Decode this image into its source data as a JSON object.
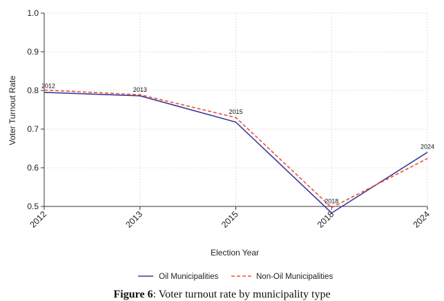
{
  "chart_data": {
    "type": "line",
    "categories": [
      "2012",
      "2013",
      "2015",
      "2018",
      "2024"
    ],
    "series": [
      {
        "name": "Oil Municipalities",
        "values": [
          0.795,
          0.786,
          0.718,
          0.483,
          0.64
        ],
        "color": "#3a3a9c",
        "style": "solid"
      },
      {
        "name": "Non-Oil Municipalities",
        "values": [
          0.801,
          0.789,
          0.73,
          0.497,
          0.624
        ],
        "color": "#ee4d33",
        "style": "dashed"
      }
    ],
    "point_labels": [
      "2012",
      "2013",
      "2015",
      "2018",
      "2024"
    ],
    "xlabel": "Election Year",
    "ylabel": "Voter Turnout Rate",
    "ylim": [
      0.5,
      1.0
    ],
    "yticks": [
      "0.5",
      "0.6",
      "0.7",
      "0.8",
      "0.9",
      "1.0"
    ],
    "grid": true,
    "legend_position": "bottom"
  },
  "caption": {
    "label": "Figure 6",
    "text": ": Voter turnout rate by municipality type"
  }
}
